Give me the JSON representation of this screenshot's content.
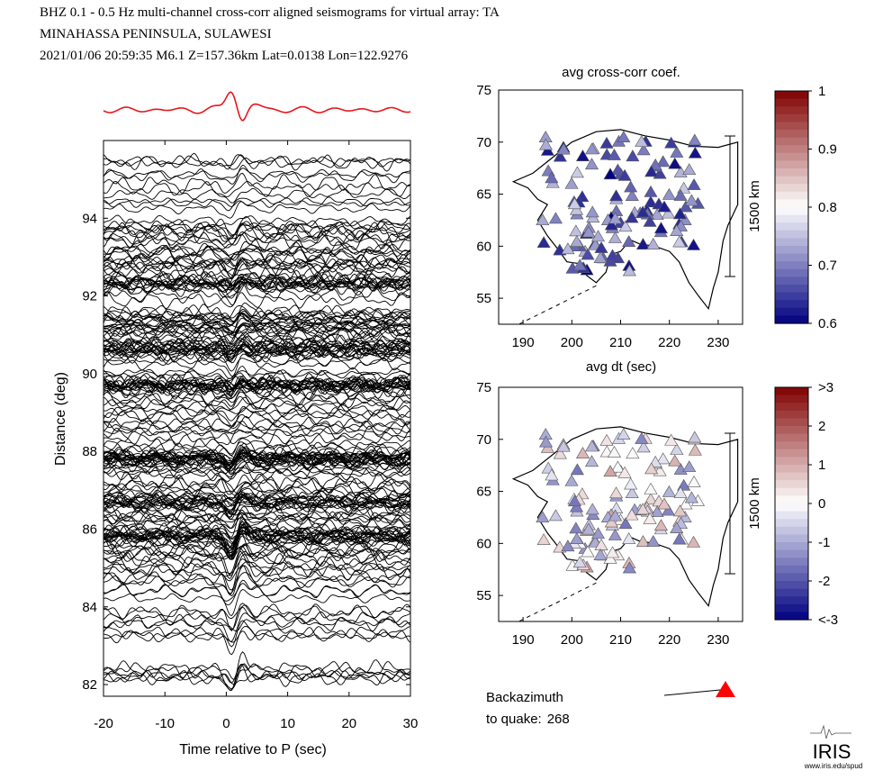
{
  "header": {
    "line1": "BHZ  0.1 - 0.5 Hz  multi-channel cross-corr aligned seismograms for virtual array: TA",
    "line2": "MINAHASSA PENINSULA, SULAWESI",
    "line3": "2021/01/06  20:59:35  M6.1  Z=157.36km Lat=0.0138 Lon=122.9276"
  },
  "colors": {
    "stack_trace": "#e8161b",
    "trace": "#000000",
    "quake_marker": "#ff0000"
  },
  "chart_data": [
    {
      "type": "line",
      "name": "seismogram-section",
      "xlabel": "Time relative to P (sec)",
      "ylabel": "Distance (deg)",
      "xlim": [
        -20,
        30
      ],
      "ylim": [
        81.7,
        96
      ],
      "xticks": [
        -20,
        -10,
        0,
        10,
        20,
        30
      ],
      "yticks": [
        82,
        84,
        86,
        88,
        90,
        92,
        94
      ],
      "dense_distance_bands": [
        86.75,
        85.8,
        87.8,
        89.7,
        90.6,
        92.3
      ],
      "trace_distance_range": [
        82.1,
        95.5
      ],
      "stack_trace_label": ""
    },
    {
      "type": "scatter",
      "name": "map-avg-cross-corr-coef",
      "title": "avg cross-corr coef.",
      "xlim": [
        185,
        235
      ],
      "ylim": [
        52.5,
        75
      ],
      "xticks": [
        190,
        200,
        210,
        220,
        230
      ],
      "yticks": [
        55,
        60,
        65,
        70,
        75
      ],
      "scale_bar_label": "1500 km",
      "colorbar": {
        "min": 0.6,
        "max": 1.0,
        "ticks": [
          "0.6",
          "0.7",
          "0.8",
          "0.9",
          "1"
        ]
      }
    },
    {
      "type": "scatter",
      "name": "map-avg-dt",
      "title": "avg dt (sec)",
      "xlim": [
        185,
        235
      ],
      "ylim": [
        52.5,
        75
      ],
      "xticks": [
        190,
        200,
        210,
        220,
        230
      ],
      "yticks": [
        55,
        60,
        65,
        70,
        75
      ],
      "scale_bar_label": "1500 km",
      "colorbar": {
        "min": -3,
        "max": 3,
        "ticks": [
          "<-3",
          "-2",
          "-1",
          "0",
          "1",
          "2",
          ">3"
        ]
      }
    }
  ],
  "backazimuth": {
    "label_line1": "Backazimuth",
    "label_line2": "to quake:",
    "value": "268"
  },
  "logo": {
    "text": "IRIS",
    "url_text": "www.iris.edu/spud"
  }
}
